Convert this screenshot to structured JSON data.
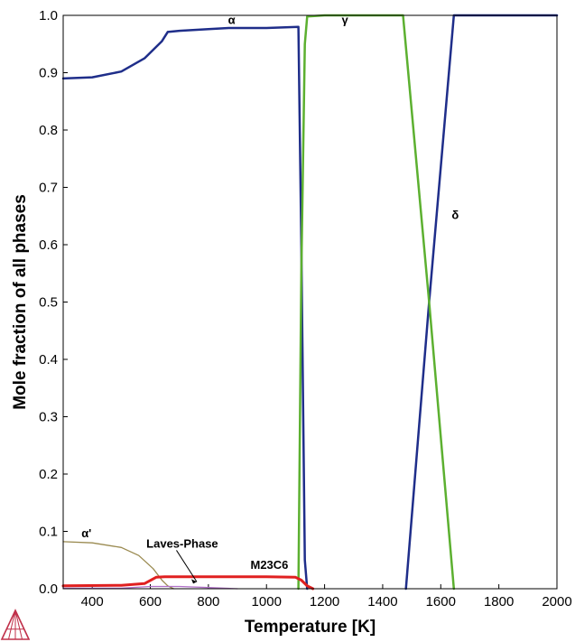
{
  "chart_data": {
    "type": "line",
    "xlabel": "Temperature [K]",
    "ylabel": "Mole fraction of all phases",
    "xlim": [
      300,
      2000
    ],
    "ylim": [
      0,
      1
    ],
    "x_ticks": [
      400,
      600,
      800,
      1000,
      1200,
      1400,
      1600,
      1800,
      2000
    ],
    "y_ticks": [
      "0.0",
      "0.1",
      "0.2",
      "0.3",
      "0.4",
      "0.5",
      "0.6",
      "0.7",
      "0.8",
      "0.9",
      "1.0"
    ],
    "grid": false,
    "series": [
      {
        "name": "α",
        "color": "#1f2e8a",
        "width": 2.5,
        "points": [
          [
            300,
            0.89
          ],
          [
            400,
            0.892
          ],
          [
            500,
            0.902
          ],
          [
            580,
            0.925
          ],
          [
            640,
            0.955
          ],
          [
            660,
            0.971
          ],
          [
            700,
            0.973
          ],
          [
            800,
            0.976
          ],
          [
            870,
            0.978
          ],
          [
            1000,
            0.978
          ],
          [
            1110,
            0.98
          ],
          [
            1120,
            0.6
          ],
          [
            1132,
            0.05
          ],
          [
            1140,
            0.0
          ]
        ]
      },
      {
        "name": "",
        "color": "#1f2e8a",
        "width": 2.5,
        "points": [
          [
            1480,
            0.0
          ],
          [
            1560,
            0.5
          ],
          [
            1645,
            1.0
          ],
          [
            2000,
            1.0
          ]
        ]
      },
      {
        "name": "γ",
        "color": "#5cb030",
        "width": 2.5,
        "points": [
          [
            1110,
            0.0
          ],
          [
            1120,
            0.55
          ],
          [
            1132,
            0.95
          ],
          [
            1140,
            0.998
          ],
          [
            1200,
            1.0
          ],
          [
            1470,
            1.0
          ],
          [
            1560,
            0.5
          ],
          [
            1645,
            0.0
          ]
        ]
      },
      {
        "name": "α'",
        "color": "#9a8a50",
        "width": 1.3,
        "points": [
          [
            300,
            0.082
          ],
          [
            400,
            0.08
          ],
          [
            500,
            0.072
          ],
          [
            560,
            0.058
          ],
          [
            610,
            0.035
          ],
          [
            640,
            0.015
          ],
          [
            660,
            0.005
          ],
          [
            680,
            0.0
          ]
        ]
      },
      {
        "name": "M23C6",
        "color": "#e02020",
        "width": 3,
        "points": [
          [
            300,
            0.005
          ],
          [
            500,
            0.006
          ],
          [
            580,
            0.009
          ],
          [
            620,
            0.02
          ],
          [
            650,
            0.021
          ],
          [
            1000,
            0.021
          ],
          [
            1100,
            0.02
          ],
          [
            1120,
            0.015
          ],
          [
            1140,
            0.005
          ],
          [
            1160,
            0.0
          ]
        ]
      },
      {
        "name": "Laves-Phase",
        "color": "#b070c8",
        "width": 1.3,
        "points": [
          [
            300,
            0.001
          ],
          [
            500,
            0.001
          ],
          [
            600,
            0.004
          ],
          [
            700,
            0.004
          ],
          [
            800,
            0.002
          ],
          [
            900,
            0.0
          ]
        ]
      }
    ],
    "annotations": [
      {
        "text": "α",
        "x": 880,
        "y": 0.985
      },
      {
        "text": "γ",
        "x": 1270,
        "y": 0.985
      },
      {
        "text": "δ",
        "x": 1650,
        "y": 0.645
      },
      {
        "text": "α'",
        "x": 380,
        "y": 0.09
      },
      {
        "text": "Laves-Phase",
        "x": 710,
        "y": 0.072
      },
      {
        "text": "M23C6",
        "x": 1010,
        "y": 0.035
      }
    ]
  },
  "logo": {
    "name": "thermo-calc-logo",
    "color": "#c0304a"
  }
}
